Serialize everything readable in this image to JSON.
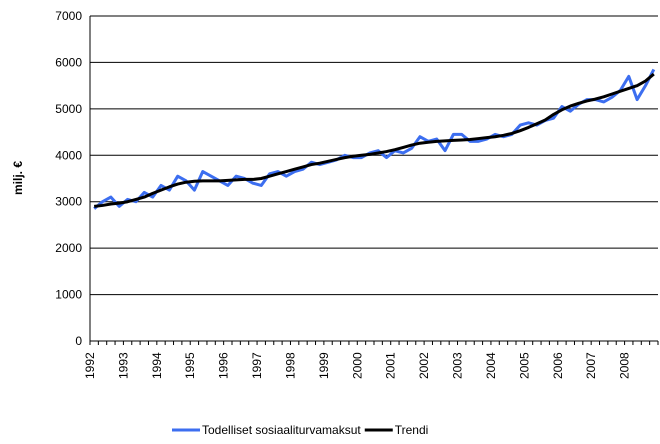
{
  "chart_data": {
    "type": "line",
    "y_label": "milj. €",
    "categories": [
      "1992",
      null,
      null,
      null,
      "1993",
      null,
      null,
      null,
      "1994",
      null,
      null,
      null,
      "1995",
      null,
      null,
      null,
      "1996",
      null,
      null,
      null,
      "1997",
      null,
      null,
      null,
      "1998",
      null,
      null,
      null,
      "1999",
      null,
      null,
      null,
      "2000",
      null,
      null,
      null,
      "2001",
      null,
      null,
      null,
      "2002",
      null,
      null,
      null,
      "2003",
      null,
      null,
      null,
      "2004",
      null,
      null,
      null,
      "2005",
      null,
      null,
      null,
      "2006",
      null,
      null,
      null,
      "2007",
      null,
      null,
      null,
      "2008",
      null,
      null,
      null
    ],
    "series": [
      {
        "name": "Todelliset sosiaaliturvamaksut",
        "color": "#3c6ef0",
        "width": 3,
        "values": [
          2850,
          3000,
          3100,
          2900,
          3050,
          3000,
          3200,
          3100,
          3350,
          3250,
          3550,
          3450,
          3250,
          3650,
          3550,
          3450,
          3350,
          3550,
          3500,
          3400,
          3350,
          3600,
          3650,
          3550,
          3650,
          3700,
          3850,
          3800,
          3850,
          3900,
          4000,
          3950,
          3950,
          4050,
          4100,
          3950,
          4100,
          4050,
          4150,
          4400,
          4300,
          4350,
          4100,
          4450,
          4450,
          4300,
          4300,
          4350,
          4450,
          4400,
          4450,
          4650,
          4700,
          4650,
          4750,
          4800,
          5050,
          4950,
          5100,
          5200,
          5200,
          5150,
          5250,
          5400,
          5700,
          5200,
          5500,
          5850
        ]
      },
      {
        "name": "Trendi",
        "color": "#000000",
        "width": 3,
        "values": [
          2900,
          2920,
          2950,
          2970,
          3000,
          3050,
          3100,
          3180,
          3250,
          3320,
          3380,
          3420,
          3440,
          3450,
          3450,
          3450,
          3460,
          3470,
          3480,
          3480,
          3500,
          3550,
          3600,
          3650,
          3700,
          3750,
          3800,
          3830,
          3870,
          3910,
          3950,
          3980,
          4000,
          4020,
          4050,
          4080,
          4120,
          4170,
          4220,
          4260,
          4280,
          4300,
          4310,
          4320,
          4330,
          4340,
          4360,
          4380,
          4400,
          4430,
          4470,
          4530,
          4600,
          4680,
          4760,
          4880,
          4980,
          5060,
          5120,
          5170,
          5210,
          5260,
          5320,
          5380,
          5440,
          5500,
          5600,
          5750
        ]
      }
    ],
    "ylim": [
      0,
      7000
    ],
    "yticks": [
      0,
      1000,
      2000,
      3000,
      4000,
      5000,
      6000,
      7000
    ],
    "grid": true
  }
}
